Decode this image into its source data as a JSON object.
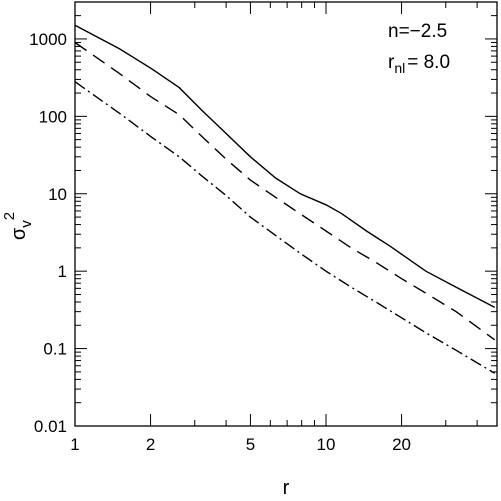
{
  "chart_data": {
    "type": "line",
    "xscale": "log",
    "yscale": "log",
    "xlim": [
      1,
      48
    ],
    "ylim": [
      0.01,
      3000
    ],
    "xticks": [
      1,
      2,
      5,
      10,
      20
    ],
    "xticklabels": [
      "1",
      "2",
      "5",
      "10",
      "20"
    ],
    "yticks": [
      0.01,
      0.1,
      1,
      10,
      100,
      1000
    ],
    "yticklabels": [
      "0.01",
      "0.1",
      "1",
      "10",
      "100",
      "1000"
    ],
    "xlabel": "r",
    "ylabel": "σ_v^2",
    "annotation": {
      "line1": "n=−2.5",
      "line2_prefix": "r",
      "line2_sub": "nl",
      "line2_suffix": "= 8.0"
    },
    "series": [
      {
        "style": "solid",
        "color": "#000000",
        "x": [
          1.0,
          1.5,
          2.0,
          2.6,
          3.2,
          4.0,
          5.0,
          6.3,
          7.9,
          10.0,
          11.5,
          14.5,
          18.0,
          25.0,
          33.0,
          47.0
        ],
        "y": [
          1500,
          750,
          420,
          235,
          120,
          60,
          30,
          16,
          10,
          7.2,
          5.6,
          3.3,
          2.1,
          1.0,
          0.62,
          0.34
        ]
      },
      {
        "style": "dashed",
        "color": "#000000",
        "x": [
          1.0,
          1.5,
          2.0,
          2.6,
          3.2,
          4.0,
          5.0,
          6.3,
          7.9,
          10.0,
          12.6,
          15.8,
          20.0,
          25.0,
          33.0,
          47.0
        ],
        "y": [
          900,
          360,
          180,
          105,
          55,
          28,
          15,
          9,
          5.5,
          3.3,
          2.0,
          1.3,
          0.8,
          0.52,
          0.3,
          0.13
        ]
      },
      {
        "style": "dashdot",
        "color": "#000000",
        "x": [
          1.0,
          1.5,
          2.0,
          2.6,
          3.2,
          4.0,
          5.0,
          6.3,
          7.9,
          10.0,
          12.6,
          15.8,
          20.0,
          25.0,
          33.0,
          47.0
        ],
        "y": [
          280,
          110,
          55,
          30,
          17,
          9.5,
          5.0,
          2.9,
          1.7,
          1.0,
          0.62,
          0.4,
          0.25,
          0.16,
          0.095,
          0.048
        ]
      }
    ]
  }
}
